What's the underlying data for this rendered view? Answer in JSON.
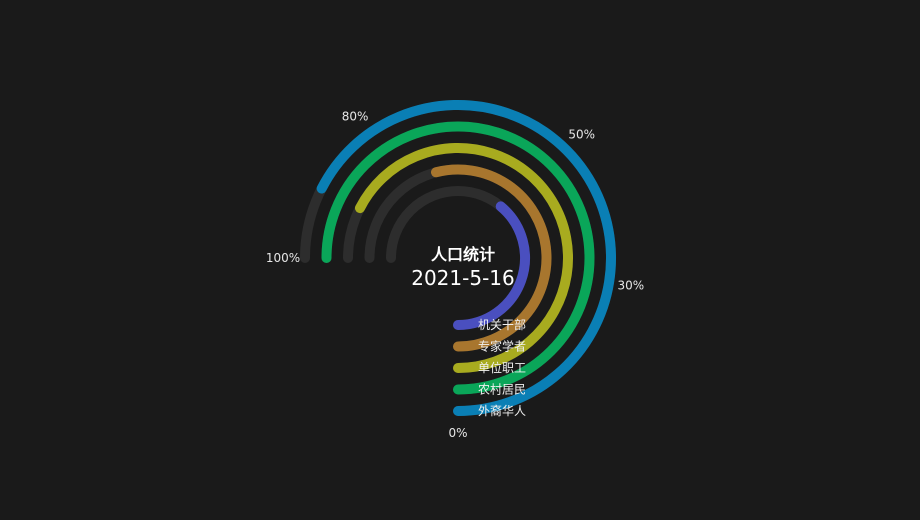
{
  "chart_data": {
    "type": "radial-bar",
    "title": "人口统计",
    "subtitle": "2021-5-16",
    "angle_axis": {
      "min": 0,
      "max": 100,
      "sweep_degrees": 270,
      "start": "bottom",
      "direction": "clockwise",
      "tick_labels": [
        {
          "value": 0,
          "label": "0%"
        },
        {
          "value": 30,
          "label": "30%"
        },
        {
          "value": 50,
          "label": "50%"
        },
        {
          "value": 80,
          "label": "80%"
        },
        {
          "value": 100,
          "label": "100%"
        }
      ]
    },
    "track_color": "#2d2d2d",
    "legend_position": "center",
    "series": [
      {
        "name": "机关干部",
        "value": 52,
        "color": "#4a4fbf"
      },
      {
        "name": "专家学者",
        "value": 72,
        "color": "#a8762e"
      },
      {
        "name": "单位职工",
        "value": 90,
        "color": "#a8ab1f"
      },
      {
        "name": "农村居民",
        "value": 100,
        "color": "#0aa659"
      },
      {
        "name": "外裔华人",
        "value": 90,
        "color": "#0a7fb5"
      }
    ]
  }
}
